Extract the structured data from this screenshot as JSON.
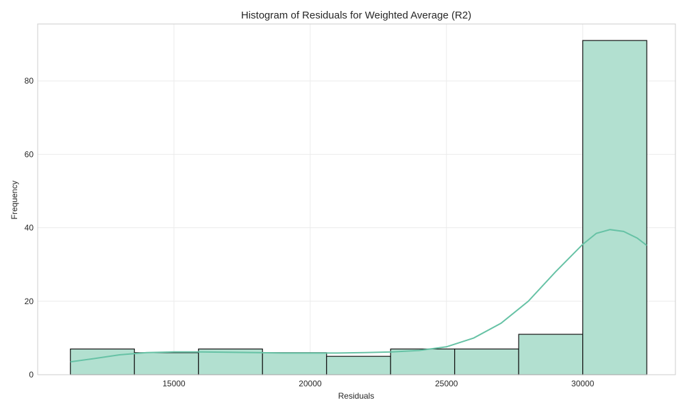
{
  "chart_data": {
    "type": "bar",
    "title": "Histogram of Residuals for Weighted Average (R2)",
    "xlabel": "Residuals",
    "ylabel": "Frequency",
    "xlim": [
      10000,
      33400
    ],
    "ylim": [
      0,
      95.5
    ],
    "x_ticks": [
      15000,
      20000,
      25000,
      30000
    ],
    "y_ticks": [
      0,
      20,
      40,
      60,
      80
    ],
    "bins": [
      {
        "x0": 11200,
        "x1": 13550,
        "count": 7
      },
      {
        "x0": 13550,
        "x1": 15900,
        "count": 6
      },
      {
        "x0": 15900,
        "x1": 18250,
        "count": 7
      },
      {
        "x0": 18250,
        "x1": 20600,
        "count": 6
      },
      {
        "x0": 20600,
        "x1": 22950,
        "count": 5
      },
      {
        "x0": 22950,
        "x1": 25300,
        "count": 7
      },
      {
        "x0": 25300,
        "x1": 27650,
        "count": 7
      },
      {
        "x0": 27650,
        "x1": 30000,
        "count": 11
      },
      {
        "x0": 30000,
        "x1": 32350,
        "count": 91
      }
    ],
    "kde_curve": {
      "x": [
        11200,
        12000,
        13000,
        14000,
        15000,
        16000,
        17000,
        18000,
        19000,
        20000,
        21000,
        22000,
        23000,
        24000,
        25000,
        26000,
        27000,
        28000,
        29000,
        30000,
        30500,
        31000,
        31500,
        32000,
        32350
      ],
      "y": [
        3.5,
        4.3,
        5.4,
        6.0,
        6.2,
        6.2,
        6.1,
        6.0,
        5.9,
        5.9,
        5.9,
        6.0,
        6.2,
        6.6,
        7.6,
        10.0,
        14.0,
        20.0,
        28.0,
        35.5,
        38.5,
        39.5,
        39.0,
        37.2,
        35.2
      ]
    },
    "grid": true,
    "colors": {
      "bar_fill": "#b2e0d0",
      "bar_edge": "#111111",
      "kde_line": "#66c2a5"
    }
  }
}
